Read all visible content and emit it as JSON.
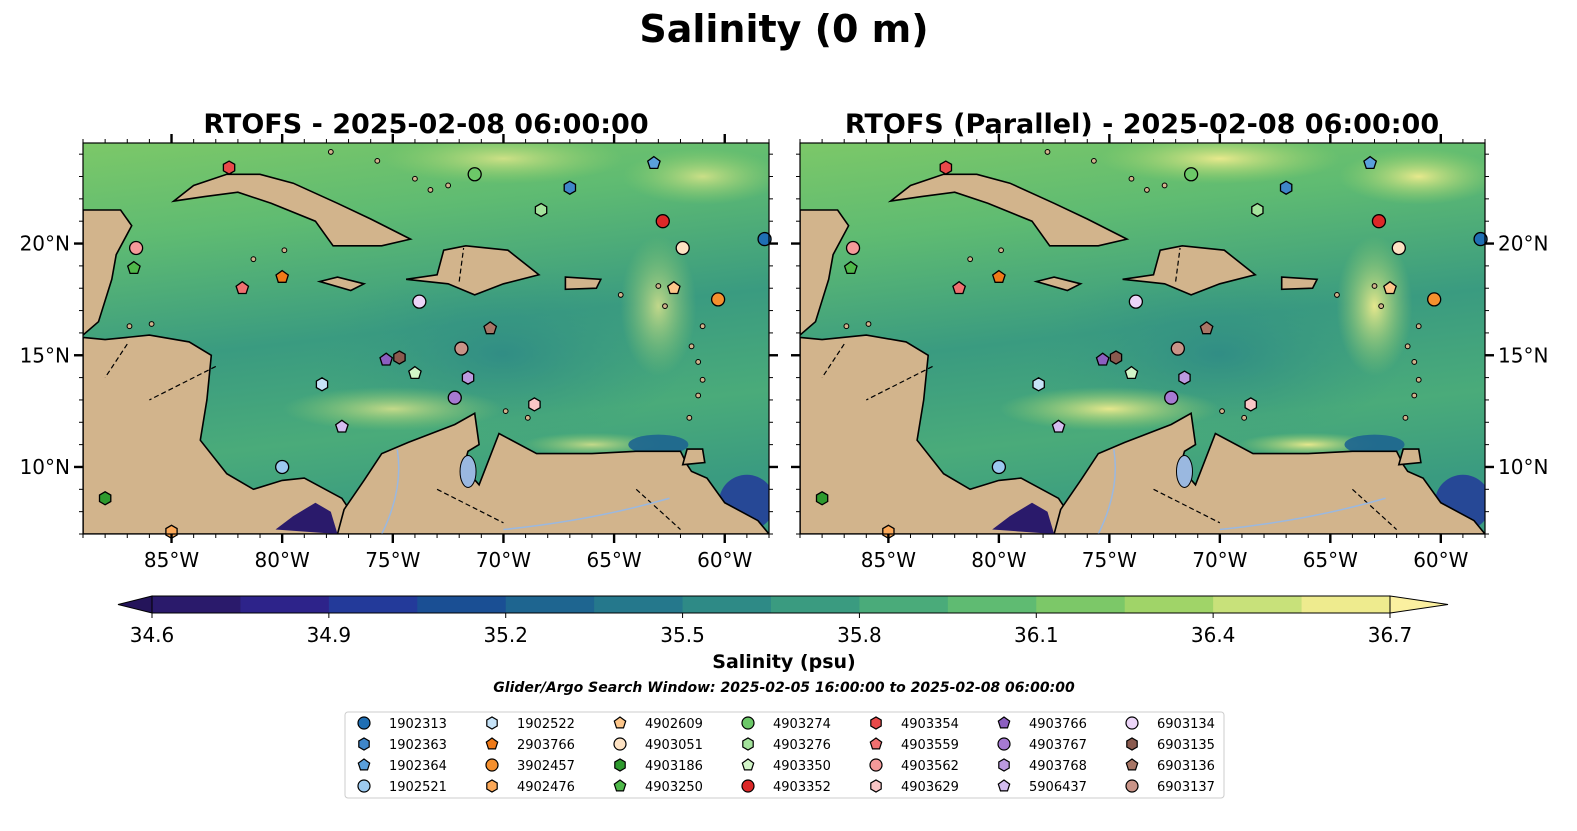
{
  "chart_data": {
    "type": "map",
    "suptitle": "Salinity (0 m)",
    "panels": [
      {
        "title": "RTOFS - 2025-02-08 06:00:00"
      },
      {
        "title": "RTOFS (Parallel) - 2025-02-08 06:00:00"
      }
    ],
    "lon_ticks": [
      "85°W",
      "80°W",
      "75°W",
      "70°W",
      "65°W",
      "60°W"
    ],
    "lon_tick_values": [
      -85,
      -80,
      -75,
      -70,
      -65,
      -60
    ],
    "lat_ticks": [
      "10°N",
      "15°N",
      "20°N"
    ],
    "lat_tick_values": [
      10,
      15,
      20
    ],
    "xlim": [
      -89,
      -58
    ],
    "ylim": [
      7,
      24.5
    ],
    "colorbar": {
      "label": "Salinity (psu)",
      "ticks": [
        "34.6",
        "34.9",
        "35.2",
        "35.5",
        "35.8",
        "36.1",
        "36.4",
        "36.7"
      ],
      "range": [
        34.6,
        36.7
      ],
      "extend": "both",
      "colors": [
        "#2a1a6b",
        "#2d238a",
        "#233a9a",
        "#1a4f94",
        "#1e6590",
        "#25788c",
        "#2e8a86",
        "#3a9b80",
        "#4aab7a",
        "#5fbb72",
        "#7cc868",
        "#a0d468",
        "#c8e17a",
        "#eeeb8e"
      ]
    },
    "search_window": "Glider/Argo Search Window: 2025-02-05 16:00:00 to 2025-02-08 06:00:00",
    "floats": [
      {
        "id": "1902313",
        "marker": "circle",
        "color": "#1f6fb4",
        "lon": -58.2,
        "lat": 20.2
      },
      {
        "id": "1902363",
        "marker": "hexagon",
        "color": "#3f86c8",
        "lon": -67.0,
        "lat": 22.5
      },
      {
        "id": "1902364",
        "marker": "pentagon",
        "color": "#5aa0dc",
        "lon": -63.2,
        "lat": 23.6
      },
      {
        "id": "1902521",
        "marker": "circle",
        "color": "#9cc9ef",
        "lon": -80.0,
        "lat": 10.0
      },
      {
        "id": "1902522",
        "marker": "hexagon",
        "color": "#c6e3f8",
        "lon": -78.2,
        "lat": 13.7
      },
      {
        "id": "2903766",
        "marker": "pentagon",
        "color": "#f07a18",
        "lon": -80.0,
        "lat": 18.5
      },
      {
        "id": "3902457",
        "marker": "circle",
        "color": "#f5902e",
        "lon": -60.3,
        "lat": 17.5
      },
      {
        "id": "4902476",
        "marker": "hexagon",
        "color": "#fba858",
        "lon": -85.0,
        "lat": 7.1
      },
      {
        "id": "4902609",
        "marker": "pentagon",
        "color": "#fdc68a",
        "lon": -62.3,
        "lat": 18.0
      },
      {
        "id": "4903051",
        "marker": "circle",
        "color": "#fde2c3",
        "lon": -61.9,
        "lat": 19.8
      },
      {
        "id": "4903186",
        "marker": "hexagon",
        "color": "#2e9a2e",
        "lon": -88.0,
        "lat": 8.6
      },
      {
        "id": "4903250",
        "marker": "pentagon",
        "color": "#4fb84a",
        "lon": -86.7,
        "lat": 18.9
      },
      {
        "id": "4903274",
        "marker": "circle",
        "color": "#6cc868",
        "lon": -71.3,
        "lat": 23.1
      },
      {
        "id": "4903276",
        "marker": "hexagon",
        "color": "#a4e39c",
        "lon": -68.3,
        "lat": 21.5
      },
      {
        "id": "4903350",
        "marker": "pentagon",
        "color": "#d2f5c8",
        "lon": -74.0,
        "lat": 14.2
      },
      {
        "id": "4903352",
        "marker": "circle",
        "color": "#dc2828",
        "lon": -62.8,
        "lat": 21.0
      },
      {
        "id": "4903354",
        "marker": "hexagon",
        "color": "#e84a4a",
        "lon": -82.4,
        "lat": 23.4
      },
      {
        "id": "4903559",
        "marker": "pentagon",
        "color": "#f07070",
        "lon": -81.8,
        "lat": 18.0
      },
      {
        "id": "4903562",
        "marker": "circle",
        "color": "#f49a9a",
        "lon": -86.6,
        "lat": 19.8
      },
      {
        "id": "4903629",
        "marker": "hexagon",
        "color": "#f9c6c6",
        "lon": -68.6,
        "lat": 12.8
      },
      {
        "id": "4903766",
        "marker": "pentagon",
        "color": "#8c5fc0",
        "lon": -75.3,
        "lat": 14.8
      },
      {
        "id": "4903767",
        "marker": "circle",
        "color": "#a67ad2",
        "lon": -72.2,
        "lat": 13.1
      },
      {
        "id": "4903768",
        "marker": "hexagon",
        "color": "#bc9ae0",
        "lon": -71.6,
        "lat": 14.0
      },
      {
        "id": "5906437",
        "marker": "pentagon",
        "color": "#d4bdf0",
        "lon": -77.3,
        "lat": 11.8
      },
      {
        "id": "6903134",
        "marker": "circle",
        "color": "#ecd5f8",
        "lon": -73.8,
        "lat": 17.4
      },
      {
        "id": "6903135",
        "marker": "hexagon",
        "color": "#8a5a4e",
        "lon": -74.7,
        "lat": 14.9
      },
      {
        "id": "6903136",
        "marker": "pentagon",
        "color": "#a87666",
        "lon": -70.6,
        "lat": 16.2
      },
      {
        "id": "6903137",
        "marker": "circle",
        "color": "#c99488",
        "lon": -71.9,
        "lat": 15.3
      }
    ]
  }
}
